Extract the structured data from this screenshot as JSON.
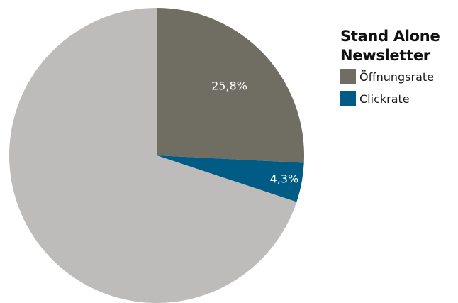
{
  "chart_data": {
    "type": "pie",
    "title": "Stand Alone\nNewsletter",
    "legend_position": "right",
    "slices": [
      {
        "name": "",
        "value": 69.9,
        "label": "",
        "color": "#bdbcbb",
        "in_legend": false
      },
      {
        "name": "Öffnungsrate",
        "value": 25.8,
        "label": "25,8%",
        "color": "#706e62",
        "in_legend": true
      },
      {
        "name": "Clickrate",
        "value": 4.3,
        "label": "4,3%",
        "color": "#005b85",
        "in_legend": true
      }
    ]
  },
  "legend": {
    "title": "Stand Alone\nNewsletter",
    "items": [
      {
        "label": "Öffnungsrate",
        "color": "#706e62"
      },
      {
        "label": "Clickrate",
        "color": "#005b85"
      }
    ]
  }
}
